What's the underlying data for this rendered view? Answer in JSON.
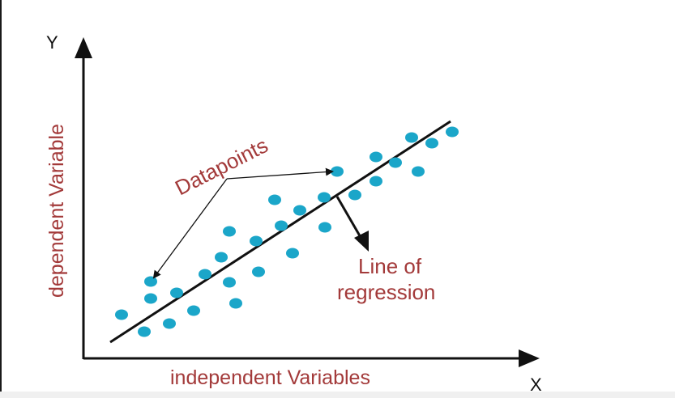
{
  "diagram": {
    "y_axis_letter": "Y",
    "x_axis_letter": "X",
    "y_axis_title": "dependent Variable",
    "x_axis_title": "independent Variables",
    "annotation_points": "Datapoints",
    "annotation_line_1": "Line of",
    "annotation_line_2": "regression",
    "colors": {
      "points": "#1ba6c9",
      "axes": "#111111",
      "labels": "#a33a3a",
      "regression_line": "#111111"
    }
  }
}
